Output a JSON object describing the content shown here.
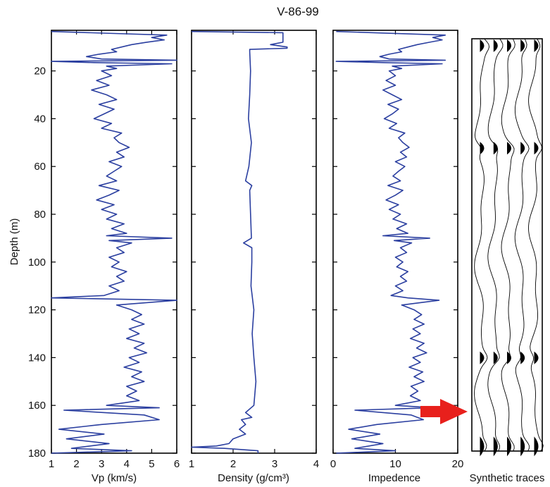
{
  "title": "V-86-99",
  "colors": {
    "curve": "#2b3fa0",
    "arrow": "#e8201c",
    "trace": "#000000"
  },
  "chart_data": [
    {
      "type": "line",
      "id": "vp",
      "xlabel": "Vp (km/s)",
      "ylabel": "Depth (m)",
      "xlim": [
        1,
        6
      ],
      "ylim": [
        180,
        3
      ],
      "xticks": [
        "1",
        "2",
        "3",
        "4",
        "5",
        "6"
      ],
      "yticks": [
        "20",
        "40",
        "60",
        "80",
        "100",
        "120",
        "140",
        "160",
        "180"
      ],
      "series": [
        {
          "depth": [
            3.5,
            5,
            6,
            7,
            8,
            9,
            10,
            11,
            12,
            13,
            14,
            15,
            15.5,
            16,
            16.5,
            17,
            18,
            19,
            20,
            22,
            24,
            26,
            28,
            30,
            32,
            34,
            36,
            38,
            40,
            42,
            44,
            46,
            48,
            50,
            52,
            54,
            56,
            58,
            60,
            62,
            64,
            66,
            68,
            70,
            72,
            74,
            76,
            78,
            80,
            82,
            84,
            86,
            88,
            89,
            90,
            91,
            92,
            94,
            96,
            98,
            100,
            102,
            104,
            106,
            108,
            110,
            112,
            114,
            115,
            116,
            118,
            120,
            122,
            124,
            126,
            128,
            130,
            132,
            134,
            136,
            138,
            140,
            142,
            144,
            146,
            148,
            150,
            152,
            154,
            156,
            158,
            160,
            161,
            162,
            164,
            166,
            168,
            170,
            172,
            174,
            176,
            178,
            179,
            180
          ],
          "vp": [
            1.0,
            5.6,
            5.0,
            5.5,
            4.8,
            4.2,
            3.8,
            3.4,
            3.6,
            2.9,
            2.4,
            3.0,
            6.0,
            1.0,
            2.7,
            5.8,
            3.2,
            3.6,
            3.0,
            3.4,
            2.8,
            3.3,
            2.6,
            3.2,
            3.6,
            2.9,
            3.5,
            3.1,
            2.7,
            3.4,
            3.0,
            3.8,
            3.5,
            3.7,
            4.1,
            3.6,
            3.9,
            3.3,
            3.8,
            3.5,
            3.2,
            3.6,
            2.9,
            3.7,
            3.3,
            2.8,
            3.5,
            3.0,
            3.6,
            3.2,
            3.9,
            3.4,
            4.0,
            3.2,
            5.8,
            3.3,
            4.2,
            3.6,
            3.9,
            3.3,
            3.7,
            3.4,
            4.0,
            3.6,
            3.9,
            3.3,
            3.7,
            3.1,
            1.0,
            6.0,
            3.6,
            4.2,
            4.6,
            4.2,
            4.7,
            4.1,
            4.5,
            4.0,
            4.7,
            4.3,
            4.8,
            4.1,
            4.5,
            3.9,
            4.6,
            4.2,
            4.7,
            4.0,
            4.4,
            4.0,
            4.5,
            3.2,
            5.3,
            1.5,
            4.7,
            5.3,
            3.0,
            1.3,
            3.1,
            1.6,
            3.3,
            1.8,
            4.2,
            1.0
          ]
        }
      ]
    },
    {
      "type": "line",
      "id": "density",
      "xlabel": "Density (g/cm³)",
      "xlim": [
        1,
        4
      ],
      "ylim": [
        180,
        3
      ],
      "xticks": [
        "1",
        "2",
        "3",
        "4"
      ],
      "series": [
        {
          "depth": [
            3.5,
            4,
            6,
            8,
            9,
            10,
            10.5,
            11,
            12,
            20,
            30,
            40,
            50,
            60,
            66,
            68,
            70,
            80,
            90,
            92,
            94,
            100,
            110,
            120,
            130,
            140,
            150,
            160,
            163,
            165,
            166,
            168,
            170,
            172,
            174,
            176,
            177,
            177.5,
            178,
            179,
            180
          ],
          "density": [
            1.0,
            3.2,
            3.2,
            3.2,
            2.9,
            3.3,
            3.3,
            2.4,
            2.4,
            2.42,
            2.4,
            2.37,
            2.44,
            2.38,
            2.3,
            2.45,
            2.4,
            2.42,
            2.44,
            2.25,
            2.45,
            2.45,
            2.43,
            2.5,
            2.46,
            2.5,
            2.55,
            2.5,
            2.3,
            2.45,
            2.2,
            2.3,
            2.15,
            2.3,
            2.0,
            1.9,
            1.6,
            1.0,
            1.8,
            2.6,
            2.6
          ]
        }
      ]
    },
    {
      "type": "line",
      "id": "impedance",
      "xlabel": "Impedence",
      "xlim": [
        0,
        20
      ],
      "ylim": [
        180,
        3
      ],
      "xticks": [
        "0",
        "10",
        "20"
      ],
      "series": [
        {
          "depth": [
            3.5,
            5,
            6,
            7,
            8,
            9,
            10,
            11,
            12,
            13,
            14,
            15,
            15.5,
            16,
            16.5,
            17,
            18,
            19,
            20,
            22,
            24,
            26,
            28,
            30,
            32,
            34,
            36,
            38,
            40,
            42,
            44,
            46,
            48,
            50,
            52,
            54,
            56,
            58,
            60,
            62,
            64,
            66,
            68,
            70,
            72,
            74,
            76,
            78,
            80,
            82,
            84,
            86,
            88,
            89,
            90,
            91,
            92,
            94,
            96,
            98,
            100,
            102,
            104,
            106,
            108,
            110,
            112,
            114,
            115,
            116,
            118,
            120,
            122,
            124,
            126,
            128,
            130,
            132,
            134,
            136,
            138,
            140,
            142,
            144,
            146,
            148,
            150,
            152,
            154,
            156,
            158,
            160,
            161,
            162,
            164,
            166,
            168,
            170,
            172,
            174,
            176,
            178,
            179,
            180
          ],
          "impedance": [
            0.5,
            18.0,
            16.0,
            17.5,
            15.5,
            13.5,
            12.0,
            10.5,
            11.0,
            9.0,
            7.5,
            9.0,
            18.0,
            0.5,
            8.0,
            17.5,
            9.5,
            11.0,
            9.0,
            10.0,
            8.5,
            10.0,
            8.0,
            9.5,
            11.0,
            8.8,
            10.5,
            9.5,
            8.2,
            10.2,
            9.0,
            11.5,
            10.5,
            11.2,
            12.2,
            10.8,
            11.8,
            10.0,
            11.5,
            10.5,
            9.6,
            10.8,
            8.8,
            11.2,
            10.0,
            8.5,
            10.5,
            9.0,
            10.8,
            9.6,
            11.8,
            10.2,
            12.0,
            8.0,
            15.5,
            9.8,
            12.6,
            10.8,
            11.8,
            10.0,
            11.2,
            10.2,
            12.0,
            10.8,
            11.8,
            10.0,
            11.2,
            9.3,
            12.0,
            17.0,
            11.0,
            13.0,
            14.2,
            13.0,
            14.6,
            12.8,
            14.0,
            12.4,
            14.6,
            13.4,
            15.0,
            12.8,
            14.0,
            12.2,
            14.4,
            13.0,
            14.6,
            12.5,
            13.6,
            12.4,
            14.0,
            10.0,
            16.0,
            3.5,
            12.5,
            14.5,
            7.0,
            2.5,
            7.5,
            3.0,
            8.0,
            3.5,
            10.0,
            0.5
          ]
        }
      ]
    }
  ],
  "synthetic": {
    "label": "Synthetic traces",
    "trace_count": 5,
    "amplitude_depths": [
      6,
      50,
      140,
      178
    ],
    "annotation": "arrow-pointing-to-trace-panel"
  }
}
